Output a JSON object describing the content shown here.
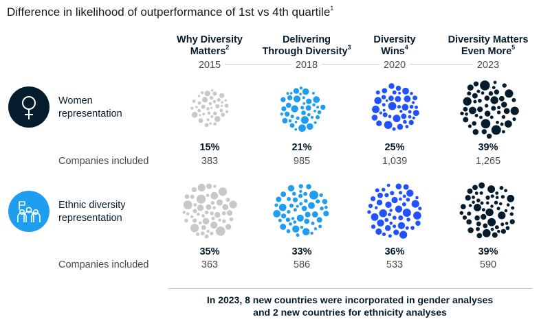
{
  "title": "Difference in likelihood of outperformance of 1st vs 4th quartile",
  "title_sup": "1",
  "columns": [
    {
      "name_line1": "Why Diversity",
      "name_line2": "Matters",
      "sup": "2",
      "year": "2015"
    },
    {
      "name_line1": "Delivering",
      "name_line2": "Through Diversity",
      "sup": "3",
      "year": "2018"
    },
    {
      "name_line1": "Diversity",
      "name_line2": "Wins",
      "sup": "4",
      "year": "2020"
    },
    {
      "name_line1": "Diversity Matters",
      "name_line2": "Even More",
      "sup": "5",
      "year": "2023"
    }
  ],
  "rows": [
    {
      "label_line1": "Women",
      "label_line2": "representation",
      "icon": "female-symbol-icon",
      "icon_bg": "#051c2c",
      "counts_label": "Companies included",
      "values": [
        "15%",
        "21%",
        "25%",
        "39%"
      ],
      "counts": [
        "383",
        "985",
        "1,039",
        "1,265"
      ]
    },
    {
      "label_line1": "Ethnic diversity",
      "label_line2": "representation",
      "icon": "group-of-people-icon",
      "icon_bg": "#1f9ef0",
      "counts_label": "Companies included",
      "values": [
        "35%",
        "33%",
        "36%",
        "39%"
      ],
      "counts": [
        "363",
        "586",
        "533",
        "590"
      ]
    }
  ],
  "chart_data": {
    "type": "table",
    "title": "Difference in likelihood of outperformance of 1st vs 4th quartile",
    "categories": [
      "2015",
      "2018",
      "2020",
      "2023"
    ],
    "series": [
      {
        "name": "Women representation",
        "values": [
          15,
          21,
          25,
          39
        ]
      },
      {
        "name": "Ethnic diversity representation",
        "values": [
          35,
          33,
          36,
          39
        ]
      }
    ],
    "companies_included": [
      {
        "name": "Women representation",
        "values": [
          383,
          985,
          1039,
          1265
        ]
      },
      {
        "name": "Ethnic diversity representation",
        "values": [
          363,
          586,
          533,
          590
        ]
      }
    ]
  },
  "cluster_colors": [
    "#c8c8c8",
    "#1f9ef0",
    "#2251ff",
    "#051c2c"
  ],
  "footnote_line1": "In 2023, 8 new countries were incorporated in gender analyses",
  "footnote_line2": "and 2 new countries for ethnicity analyses"
}
